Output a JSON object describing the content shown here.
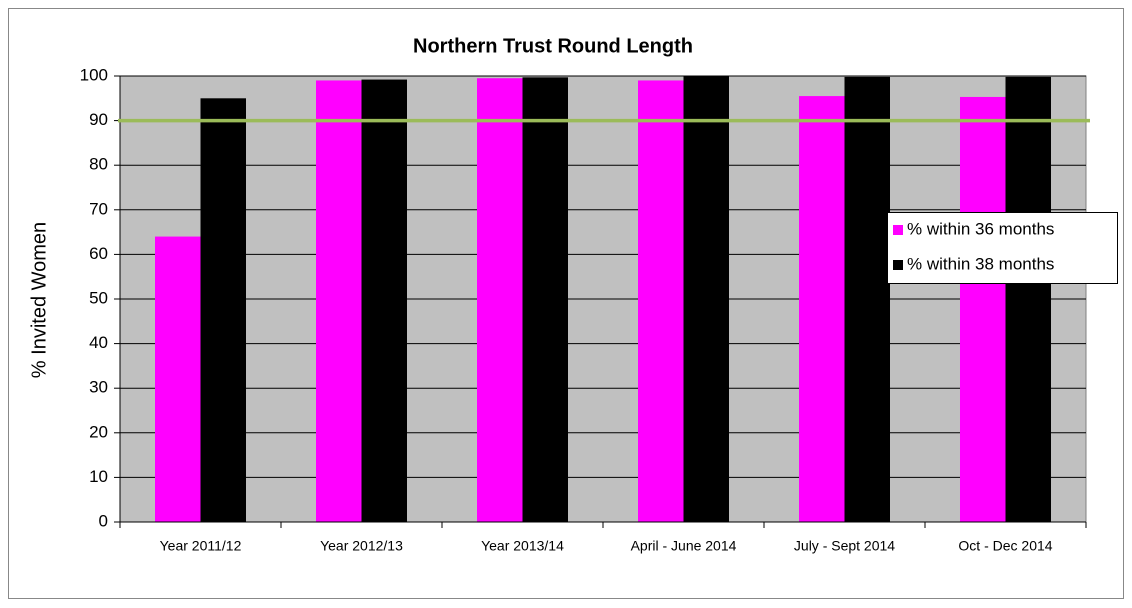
{
  "chart_data": {
    "type": "bar",
    "title": "Northern Trust Round Length",
    "y_label": "% Invited Women",
    "categories": [
      "Year 2011/12",
      "Year 2012/13",
      "Year 2013/14",
      "April - June 2014",
      "July - Sept 2014",
      "Oct - Dec 2014"
    ],
    "series": [
      {
        "name": "% within 36 months",
        "color": "#ff00ff",
        "values": [
          64,
          99,
          99.5,
          99,
          95.5,
          95.3
        ]
      },
      {
        "name": "% within 38 months",
        "color": "#000000",
        "values": [
          95,
          99.2,
          99.7,
          100,
          99.8,
          99.8
        ]
      }
    ],
    "reference_line": {
      "value": 90,
      "color": "#9bbb59"
    },
    "ylim": [
      0,
      100
    ],
    "yticks": [
      0,
      10,
      20,
      30,
      40,
      50,
      60,
      70,
      80,
      90,
      100
    ],
    "grid": true,
    "plot_background": "#c0c0c0",
    "legend": "right"
  }
}
